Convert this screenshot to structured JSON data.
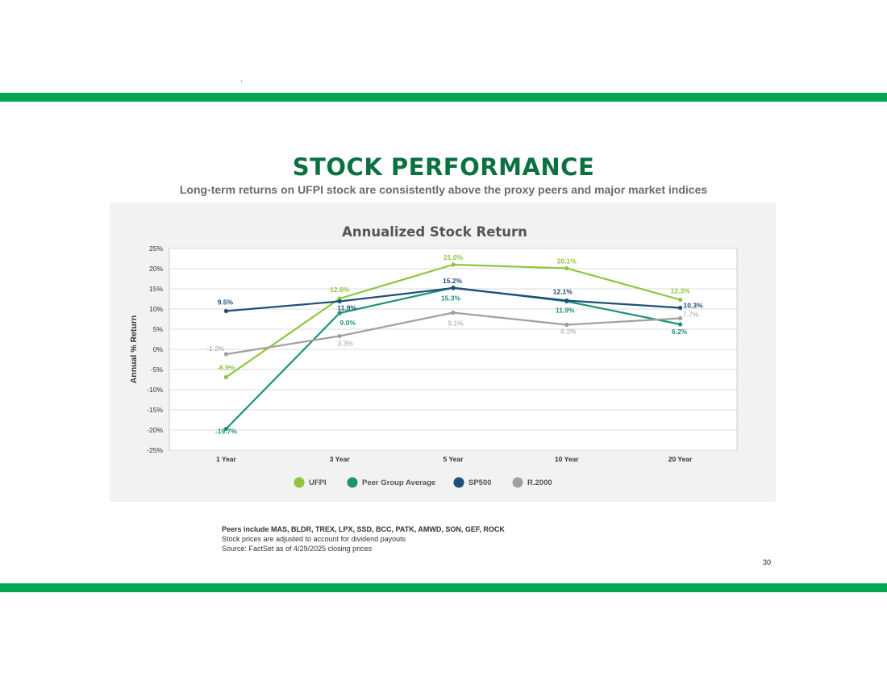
{
  "colors": {
    "brand_green": "#00a651",
    "title_green": "#0c7140",
    "panel_bg": "#f2f2f2"
  },
  "page": {
    "title": "STOCK PERFORMANCE",
    "subtitle": "Long-term returns on UFPI stock are consistently above the proxy peers and major market indices",
    "notes": [
      "Peers include MAS, BLDR, TREX, LPX, SSD, BCC, PATK, AMWD, SON, GEF, ROCK",
      "Stock prices are adjusted to account for dividend payouts",
      "Source: FactSet as of 4/29/2025 closing prices"
    ],
    "page_number": "30"
  },
  "chart_data": {
    "type": "line",
    "title": "Annualized Stock Return",
    "xlabel": "",
    "ylabel": "Annual % Return",
    "categories": [
      "1 Year",
      "3 Year",
      "5 Year",
      "10 Year",
      "20 Year"
    ],
    "ylim": [
      -25,
      25
    ],
    "ytick_step": 5,
    "grid": true,
    "legend_position": "bottom",
    "series": [
      {
        "name": "UFPI",
        "color": "#8dc63f",
        "values": [
          -6.9,
          12.6,
          21.0,
          20.1,
          12.3
        ],
        "labels": [
          "-6.9%",
          "12.6%",
          "21.0%",
          "20.1%",
          "12.3%"
        ]
      },
      {
        "name": "Peer Group Average",
        "color": "#1b9476",
        "values": [
          -19.7,
          9.0,
          15.3,
          11.9,
          6.2
        ],
        "labels": [
          "-19.7%",
          "9.0%",
          "15.3%",
          "11.9%",
          "6.2%"
        ]
      },
      {
        "name": "SP500",
        "color": "#1f4e79",
        "values": [
          9.5,
          11.9,
          15.2,
          12.1,
          10.3
        ],
        "labels": [
          "9.5%",
          "11.9%",
          "15.2%",
          "12.1%",
          "10.3%"
        ]
      },
      {
        "name": "R.2000",
        "color": "#a0a0a0",
        "values": [
          -1.2,
          3.3,
          9.1,
          6.1,
          7.7
        ],
        "labels": [
          "-1.2%",
          "3.3%",
          "9.1%",
          "6.1%",
          "7.7%"
        ]
      }
    ]
  }
}
